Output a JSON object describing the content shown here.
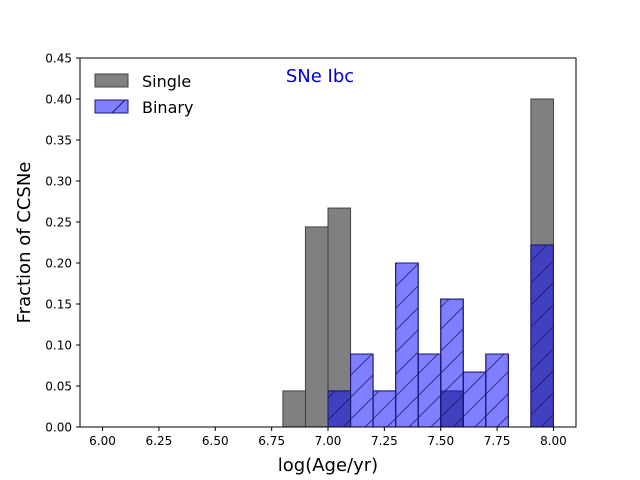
{
  "chart_data": {
    "type": "bar",
    "title": "SNe Ibc",
    "xlabel": "log(Age/yr)",
    "ylabel": "Fraction of CCSNe",
    "xlim": [
      5.9,
      8.1
    ],
    "ylim": [
      0,
      0.45
    ],
    "xticks": [
      6.0,
      6.25,
      6.5,
      6.75,
      7.0,
      7.25,
      7.5,
      7.75,
      8.0
    ],
    "xtick_labels": [
      "6.00",
      "6.25",
      "6.50",
      "6.75",
      "7.00",
      "7.25",
      "7.50",
      "7.75",
      "8.00"
    ],
    "yticks": [
      0.0,
      0.05,
      0.1,
      0.15,
      0.2,
      0.25,
      0.3,
      0.35,
      0.4,
      0.45
    ],
    "ytick_labels": [
      "0.00",
      "0.05",
      "0.10",
      "0.15",
      "0.20",
      "0.25",
      "0.30",
      "0.35",
      "0.40",
      "0.45"
    ],
    "bin_width": 0.1,
    "legend_position": "top-left",
    "grid": false,
    "series": [
      {
        "name": "Single",
        "color": "#808080",
        "edge_color": "#404040",
        "hatch": false,
        "bins": [
          {
            "x0": 6.8,
            "value": 0.044
          },
          {
            "x0": 6.9,
            "value": 0.244
          },
          {
            "x0": 7.0,
            "value": 0.267
          },
          {
            "x0": 7.5,
            "value": 0.044
          },
          {
            "x0": 7.9,
            "value": 0.4
          }
        ]
      },
      {
        "name": "Binary",
        "color": "#0000ff",
        "fill_opacity": 0.5,
        "edge_color": "#1a1a6e",
        "hatch": true,
        "bins": [
          {
            "x0": 7.0,
            "value": 0.044
          },
          {
            "x0": 7.1,
            "value": 0.089
          },
          {
            "x0": 7.2,
            "value": 0.044
          },
          {
            "x0": 7.3,
            "value": 0.2
          },
          {
            "x0": 7.4,
            "value": 0.089
          },
          {
            "x0": 7.5,
            "value": 0.156
          },
          {
            "x0": 7.6,
            "value": 0.067
          },
          {
            "x0": 7.7,
            "value": 0.089
          },
          {
            "x0": 7.9,
            "value": 0.222
          }
        ]
      }
    ]
  }
}
